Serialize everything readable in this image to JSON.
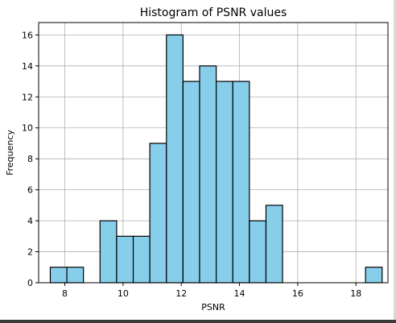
{
  "chart_data": {
    "type": "bar",
    "title": "Histogram of PSNR values",
    "xlabel": "PSNR",
    "ylabel": "Frequency",
    "xlim": [
      7.1,
      19.1
    ],
    "ylim": [
      0,
      16.8
    ],
    "xticks": [
      8,
      10,
      12,
      14,
      16,
      18
    ],
    "yticks": [
      0,
      2,
      4,
      6,
      8,
      10,
      12,
      14,
      16
    ],
    "grid": true,
    "bar_color": "#87ceeb",
    "edge_color": "#000000",
    "bins": [
      {
        "start": 7.5,
        "end": 8.07,
        "count": 1
      },
      {
        "start": 8.07,
        "end": 8.64,
        "count": 1
      },
      {
        "start": 8.64,
        "end": 9.21,
        "count": 0
      },
      {
        "start": 9.21,
        "end": 9.78,
        "count": 4
      },
      {
        "start": 9.78,
        "end": 10.35,
        "count": 3
      },
      {
        "start": 10.35,
        "end": 10.92,
        "count": 3
      },
      {
        "start": 10.92,
        "end": 11.49,
        "count": 9
      },
      {
        "start": 11.49,
        "end": 12.06,
        "count": 16
      },
      {
        "start": 12.06,
        "end": 12.63,
        "count": 13
      },
      {
        "start": 12.63,
        "end": 13.2,
        "count": 14
      },
      {
        "start": 13.2,
        "end": 13.77,
        "count": 13
      },
      {
        "start": 13.77,
        "end": 14.34,
        "count": 13
      },
      {
        "start": 14.34,
        "end": 14.91,
        "count": 4
      },
      {
        "start": 14.91,
        "end": 15.48,
        "count": 5
      },
      {
        "start": 15.48,
        "end": 16.05,
        "count": 0
      },
      {
        "start": 16.05,
        "end": 16.62,
        "count": 0
      },
      {
        "start": 16.62,
        "end": 17.19,
        "count": 0
      },
      {
        "start": 17.19,
        "end": 17.76,
        "count": 0
      },
      {
        "start": 17.76,
        "end": 18.33,
        "count": 0
      },
      {
        "start": 18.33,
        "end": 18.9,
        "count": 1
      }
    ]
  }
}
